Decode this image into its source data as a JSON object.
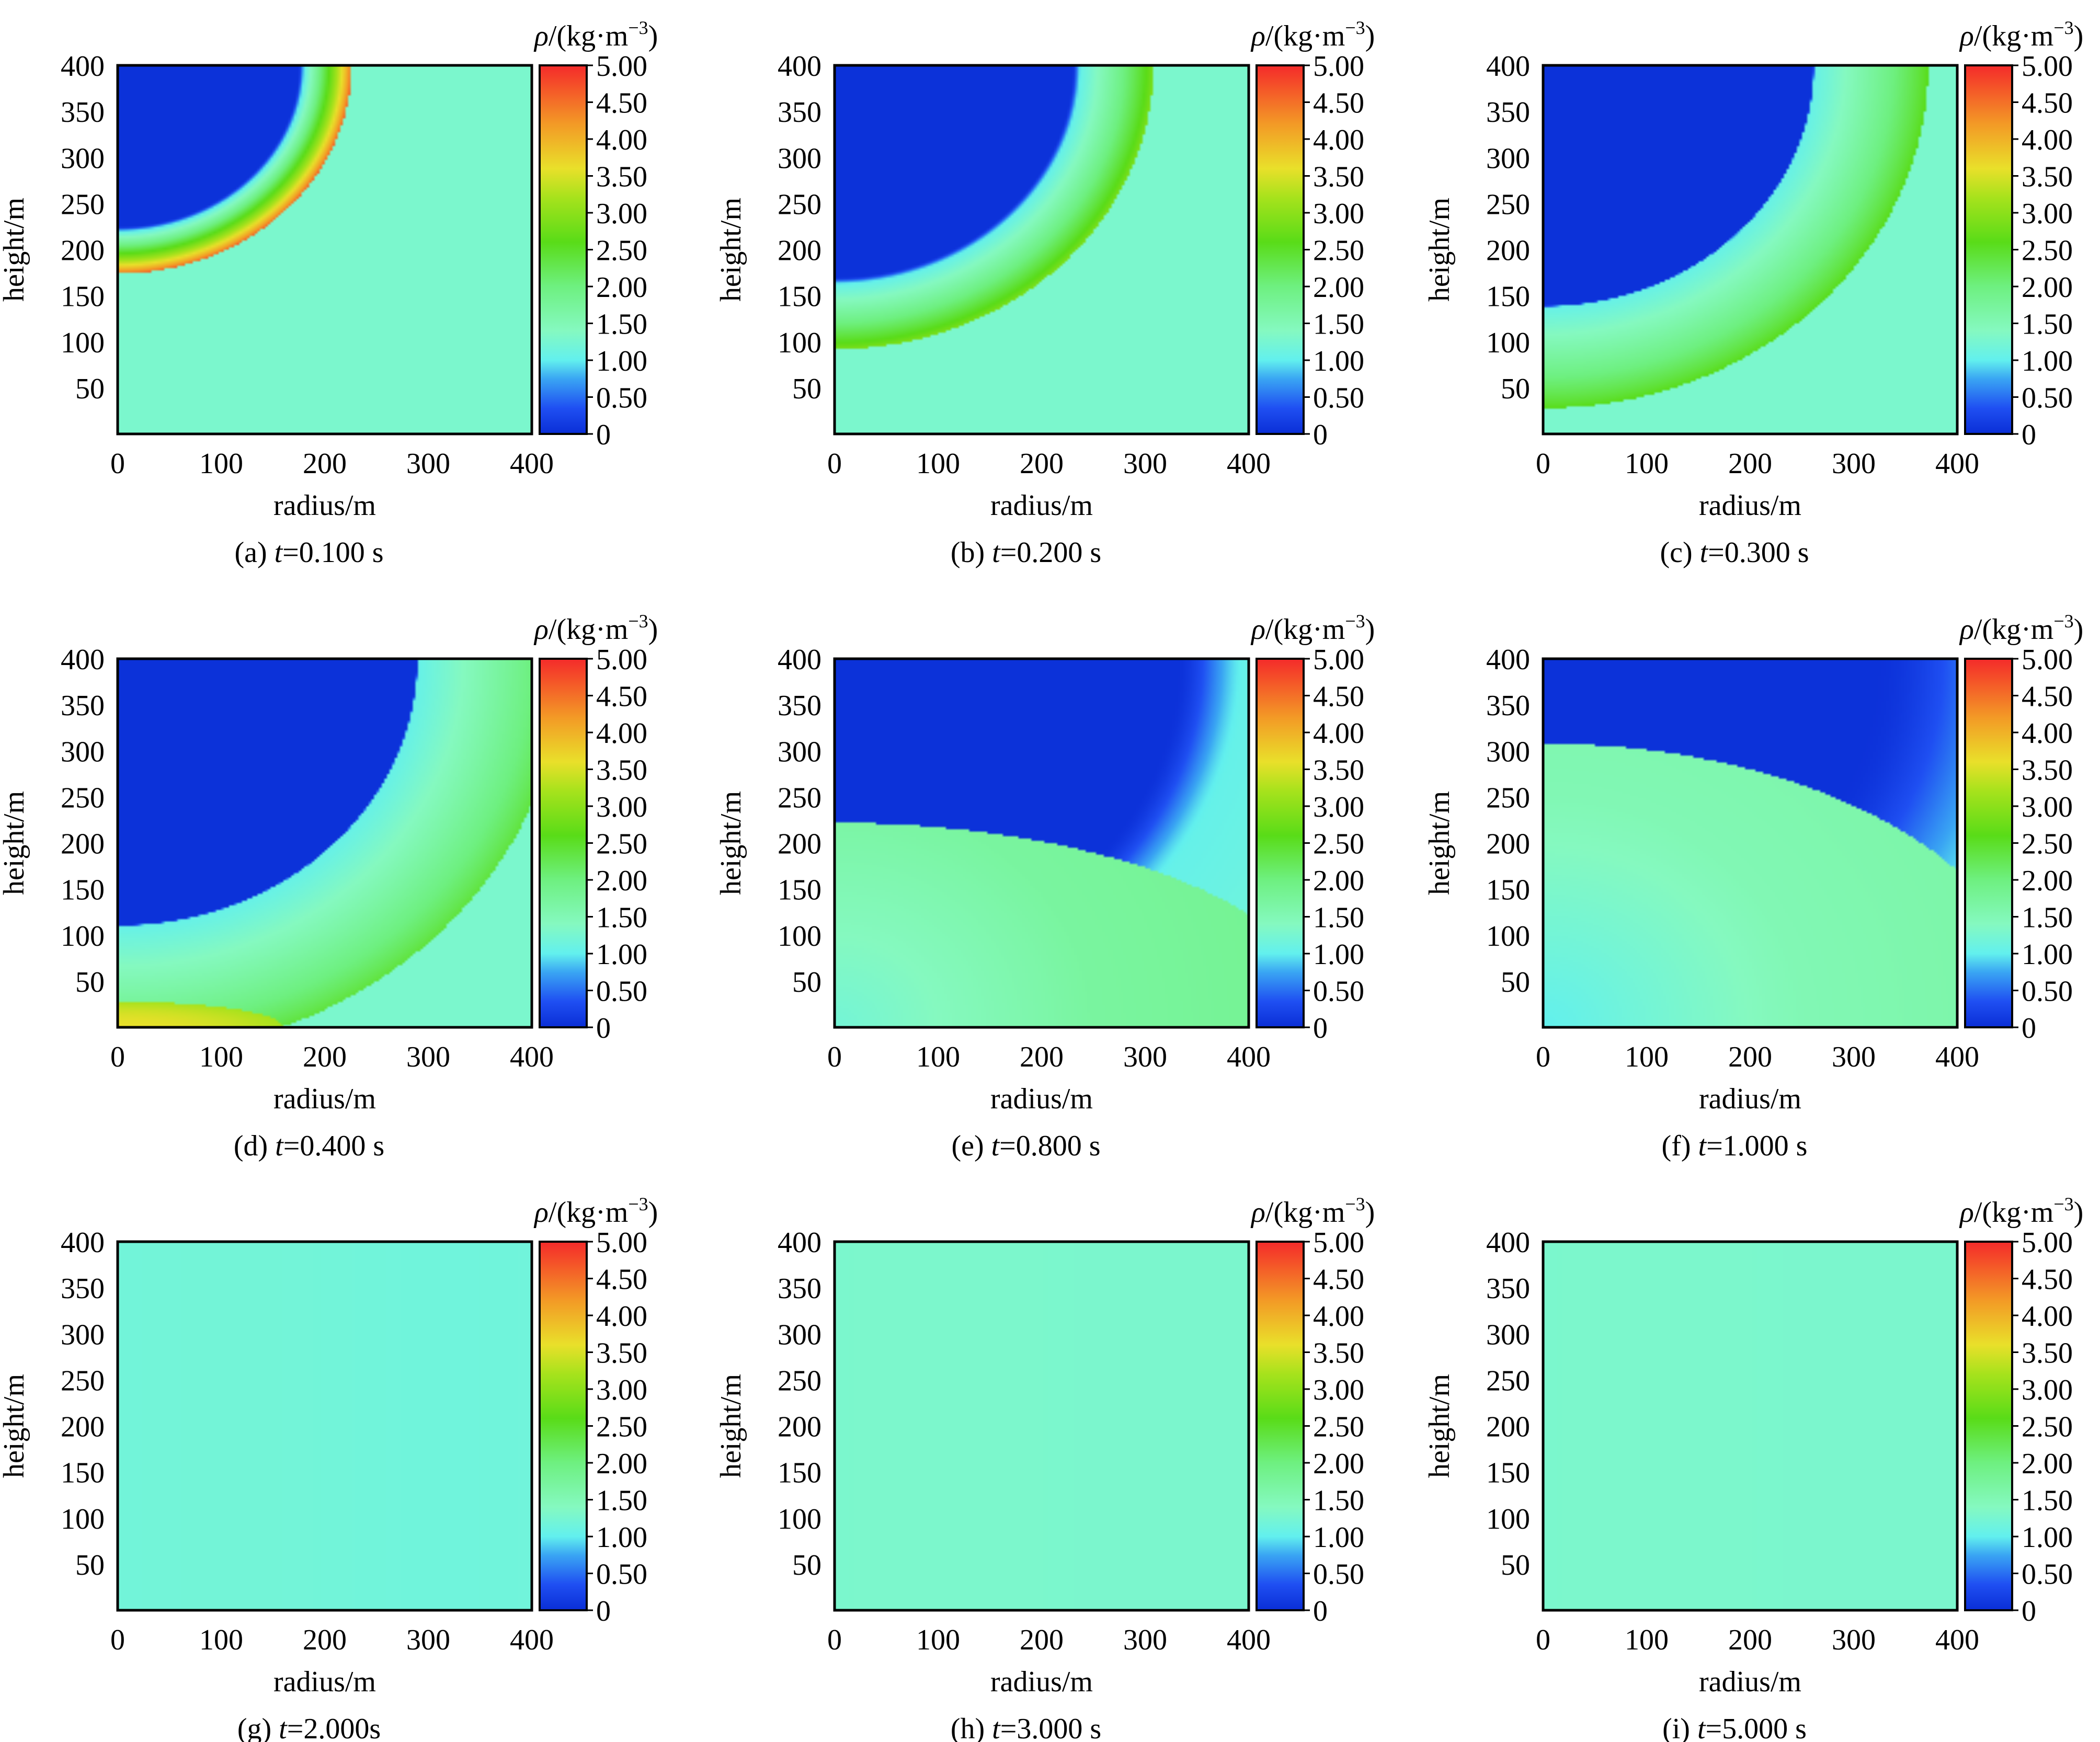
{
  "colorbar": {
    "title_symbol": "ρ",
    "title_unit": "/(kg·m",
    "title_exp": "−3",
    "title_close": ")",
    "ticks": [
      "0",
      "0.50",
      "1.00",
      "1.50",
      "2.00",
      "2.50",
      "3.00",
      "3.50",
      "4.00",
      "4.50",
      "5.00"
    ],
    "range": [
      0,
      5.0
    ],
    "stops": [
      {
        "v": 0.0,
        "color": "#0a2ed6"
      },
      {
        "v": 0.35,
        "color": "#1f4ff2"
      },
      {
        "v": 0.75,
        "color": "#3aa6f3"
      },
      {
        "v": 1.0,
        "color": "#62f0ee"
      },
      {
        "v": 1.4,
        "color": "#85f9c0"
      },
      {
        "v": 2.0,
        "color": "#6ef080"
      },
      {
        "v": 2.6,
        "color": "#59dc18"
      },
      {
        "v": 3.2,
        "color": "#a6e21c"
      },
      {
        "v": 3.6,
        "color": "#e9e02a"
      },
      {
        "v": 4.2,
        "color": "#f39a26"
      },
      {
        "v": 5.0,
        "color": "#f42a2a"
      }
    ]
  },
  "chart_data": [
    {
      "type": "heatmap",
      "label": "(a)",
      "time": "0.100 s",
      "xlabel": "radius/m",
      "ylabel": "height/m",
      "xticks": [
        "0",
        "100",
        "200",
        "300",
        "400"
      ],
      "yticks": [
        "50",
        "100",
        "150",
        "200",
        "250",
        "300",
        "350",
        "400"
      ],
      "xlim": [
        0,
        400
      ],
      "ylim": [
        0,
        400
      ],
      "ambient": 1.29,
      "center_height": 400,
      "shock_radius": 226,
      "shock_peak": 4.6,
      "wave_width": 45,
      "core_radius": 175,
      "core_value": 0.04,
      "ground_reflection": null
    },
    {
      "type": "heatmap",
      "label": "(b)",
      "time": "0.200 s",
      "xlabel": "radius/m",
      "ylabel": "height/m",
      "xticks": [
        "0",
        "100",
        "200",
        "300",
        "400"
      ],
      "yticks": [
        "50",
        "100",
        "150",
        "200",
        "250",
        "300",
        "350",
        "400"
      ],
      "xlim": [
        0,
        400
      ],
      "ylim": [
        0,
        400
      ],
      "ambient": 1.29,
      "center_height": 400,
      "shock_radius": 308,
      "shock_peak": 2.9,
      "wave_width": 70,
      "core_radius": 230,
      "core_value": 0.04,
      "ground_reflection": null
    },
    {
      "type": "heatmap",
      "label": "(c)",
      "time": "0.300 s",
      "xlabel": "radius/m",
      "ylabel": "height/m",
      "xticks": [
        "0",
        "100",
        "200",
        "300",
        "400"
      ],
      "yticks": [
        "50",
        "100",
        "150",
        "200",
        "250",
        "300",
        "350",
        "400"
      ],
      "xlim": [
        0,
        400
      ],
      "ylim": [
        0,
        400
      ],
      "ambient": 1.29,
      "center_height": 400,
      "shock_radius": 372,
      "shock_peak": 2.6,
      "wave_width": 110,
      "core_radius": 265,
      "core_value": 0.04,
      "ground_reflection": null
    },
    {
      "type": "heatmap",
      "label": "(d)",
      "time": "0.400 s",
      "xlabel": "radius/m",
      "ylabel": "height/m",
      "xticks": [
        "0",
        "100",
        "200",
        "300",
        "400"
      ],
      "yticks": [
        "50",
        "100",
        "150",
        "200",
        "250",
        "300",
        "350",
        "400"
      ],
      "xlim": [
        0,
        400
      ],
      "ylim": [
        0,
        400
      ],
      "ambient": 1.29,
      "center_height": 400,
      "shock_radius": 430,
      "shock_peak": 2.4,
      "wave_width": 140,
      "core_radius": 295,
      "core_value": 0.04,
      "ground_reflection": {
        "radius": 160,
        "height": 28,
        "value": 3.6
      }
    },
    {
      "type": "heatmap",
      "label": "(e)",
      "time": "0.800 s",
      "xlabel": "radius/m",
      "ylabel": "height/m",
      "xticks": [
        "0",
        "100",
        "200",
        "300",
        "400"
      ],
      "yticks": [
        "50",
        "100",
        "150",
        "200",
        "250",
        "300",
        "350",
        "400"
      ],
      "xlim": [
        0,
        400
      ],
      "ylim": [
        0,
        400
      ],
      "ambient": 1.29,
      "center_height": 400,
      "shock_radius": 600,
      "shock_peak": 1.3,
      "wave_width": 200,
      "core_radius": 330,
      "core_value": 0.04,
      "reflected_front": {
        "height_at_axis": 222,
        "radius_extent": 400,
        "inside_value": 1.55
      }
    },
    {
      "type": "heatmap",
      "label": "(f)",
      "time": "1.000 s",
      "xlabel": "radius/m",
      "ylabel": "height/m",
      "xticks": [
        "0",
        "100",
        "200",
        "300",
        "400"
      ],
      "yticks": [
        "50",
        "100",
        "150",
        "200",
        "250",
        "300",
        "350",
        "400"
      ],
      "xlim": [
        0,
        400
      ],
      "ylim": [
        0,
        400
      ],
      "ambient": 1.29,
      "center_height": 400,
      "shock_radius": 700,
      "shock_peak": 1.2,
      "wave_width": 200,
      "core_radius": 320,
      "core_value": 0.04,
      "reflected_front": {
        "height_at_axis": 308,
        "radius_extent": 400,
        "inside_value": 1.35
      }
    },
    {
      "type": "heatmap",
      "label": "(g)",
      "time": "2.000s",
      "xlabel": "radius/m",
      "ylabel": "height/m",
      "xticks": [
        "0",
        "100",
        "200",
        "300",
        "400"
      ],
      "yticks": [
        "50",
        "100",
        "150",
        "200",
        "250",
        "300",
        "350",
        "400"
      ],
      "xlim": [
        0,
        400
      ],
      "ylim": [
        0,
        400
      ],
      "uniform": 1.18
    },
    {
      "type": "heatmap",
      "label": "(h)",
      "time": "3.000 s",
      "xlabel": "radius/m",
      "ylabel": "height/m",
      "xticks": [
        "0",
        "100",
        "200",
        "300",
        "400"
      ],
      "yticks": [
        "50",
        "100",
        "150",
        "200",
        "250",
        "300",
        "350",
        "400"
      ],
      "xlim": [
        0,
        400
      ],
      "ylim": [
        0,
        400
      ],
      "uniform": 1.29
    },
    {
      "type": "heatmap",
      "label": "(i)",
      "time": "5.000 s",
      "xlabel": "radius/m",
      "ylabel": "height/m",
      "xticks": [
        "0",
        "100",
        "200",
        "300",
        "400"
      ],
      "yticks": [
        "50",
        "100",
        "150",
        "200",
        "250",
        "300",
        "350",
        "400"
      ],
      "xlim": [
        0,
        400
      ],
      "ylim": [
        0,
        400
      ],
      "uniform": 1.29
    }
  ]
}
